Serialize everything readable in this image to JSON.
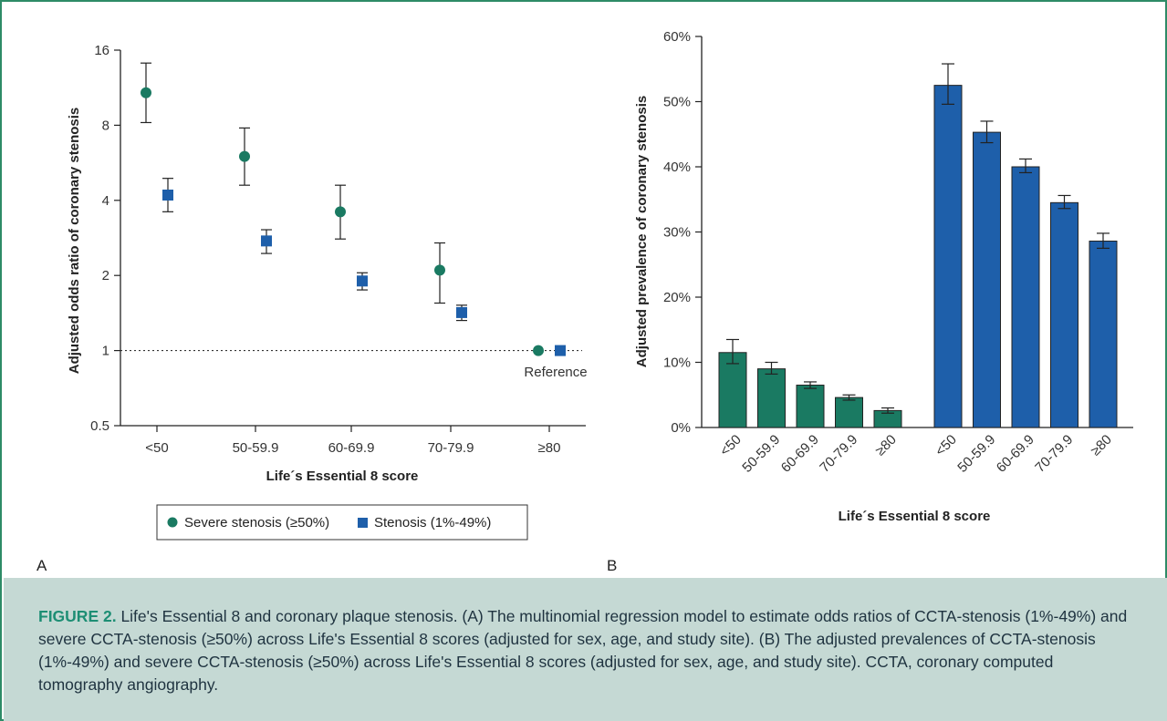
{
  "panel_a": {
    "label": "A",
    "ylabel": "Adjusted odds ratio of coronary stenosis",
    "xlabel": "Life´s Essential 8 score",
    "reference_label": "Reference",
    "legend": {
      "severe_label": "Severe stenosis (≥50%)",
      "stenosis_label": "Stenosis (1%-49%)"
    }
  },
  "panel_b": {
    "label": "B",
    "ylabel": "Adjusted prevalence of coronary stenosis",
    "xlabel": "Life´s Essential 8 score"
  },
  "caption": {
    "lead": "FIGURE 2.",
    "text": " Life's Essential 8 and coronary plaque stenosis. (A) The multinomial regression model to estimate odds ratios of CCTA-stenosis (1%-49%) and severe CCTA-stenosis (≥50%) across Life's Essential 8 scores (adjusted for sex, age, and study site). (B) The adjusted prevalences of CCTA-stenosis (1%-49%) and severe CCTA-stenosis (≥50%) across Life's Essential 8 scores (adjusted for sex, age, and study site). CCTA, coronary computed tomography angiography."
  },
  "colors": {
    "green": "#1a7a62",
    "blue": "#1e5faa",
    "frame": "#2e8b67",
    "caption_bg": "#c5d9d4"
  },
  "chart_data": [
    {
      "type": "scatter",
      "panel": "A",
      "scale": "log2",
      "ylim": [
        0.5,
        16
      ],
      "yticks": [
        0.5,
        1,
        2,
        4,
        8,
        16
      ],
      "ytick_labels": [
        "0.5",
        "1",
        "2",
        "4",
        "8",
        "16"
      ],
      "categories": [
        "<50",
        "50-59.9",
        "60-69.9",
        "70-79.9",
        "≥80"
      ],
      "reference_line": 1,
      "series": [
        {
          "name": "Severe stenosis (≥50%)",
          "marker": "circle",
          "color": "#1a7a62",
          "values": [
            10.8,
            6.0,
            3.6,
            2.1,
            1.0
          ],
          "ci_low": [
            8.2,
            4.6,
            2.8,
            1.55,
            null
          ],
          "ci_high": [
            14.2,
            7.8,
            4.6,
            2.7,
            null
          ]
        },
        {
          "name": "Stenosis (1%-49%)",
          "marker": "square",
          "color": "#1e5faa",
          "values": [
            4.2,
            2.75,
            1.9,
            1.42,
            1.0
          ],
          "ci_low": [
            3.6,
            2.45,
            1.75,
            1.32,
            null
          ],
          "ci_high": [
            4.9,
            3.05,
            2.05,
            1.52,
            null
          ]
        }
      ]
    },
    {
      "type": "bar",
      "panel": "B",
      "ylim": [
        0,
        60
      ],
      "yticks": [
        0,
        10,
        20,
        30,
        40,
        50,
        60
      ],
      "ytick_labels": [
        "0%",
        "10%",
        "20%",
        "30%",
        "40%",
        "50%",
        "60%"
      ],
      "groups": [
        {
          "color": "#1a7a62",
          "categories": [
            "<50",
            "50-59.9",
            "60-69.9",
            "70-79.9",
            "≥80"
          ],
          "values": [
            11.5,
            9.0,
            6.5,
            4.6,
            2.6
          ],
          "ci_low": [
            9.8,
            8.2,
            6.0,
            4.2,
            2.2
          ],
          "ci_high": [
            13.5,
            10.0,
            7.0,
            5.0,
            3.0
          ]
        },
        {
          "color": "#1e5faa",
          "categories": [
            "<50",
            "50-59.9",
            "60-69.9",
            "70-79.9",
            "≥80"
          ],
          "values": [
            52.5,
            45.3,
            40.0,
            34.5,
            28.6
          ],
          "ci_low": [
            49.6,
            43.7,
            39.1,
            33.6,
            27.5
          ],
          "ci_high": [
            55.8,
            47.0,
            41.2,
            35.6,
            29.8
          ]
        }
      ]
    }
  ]
}
